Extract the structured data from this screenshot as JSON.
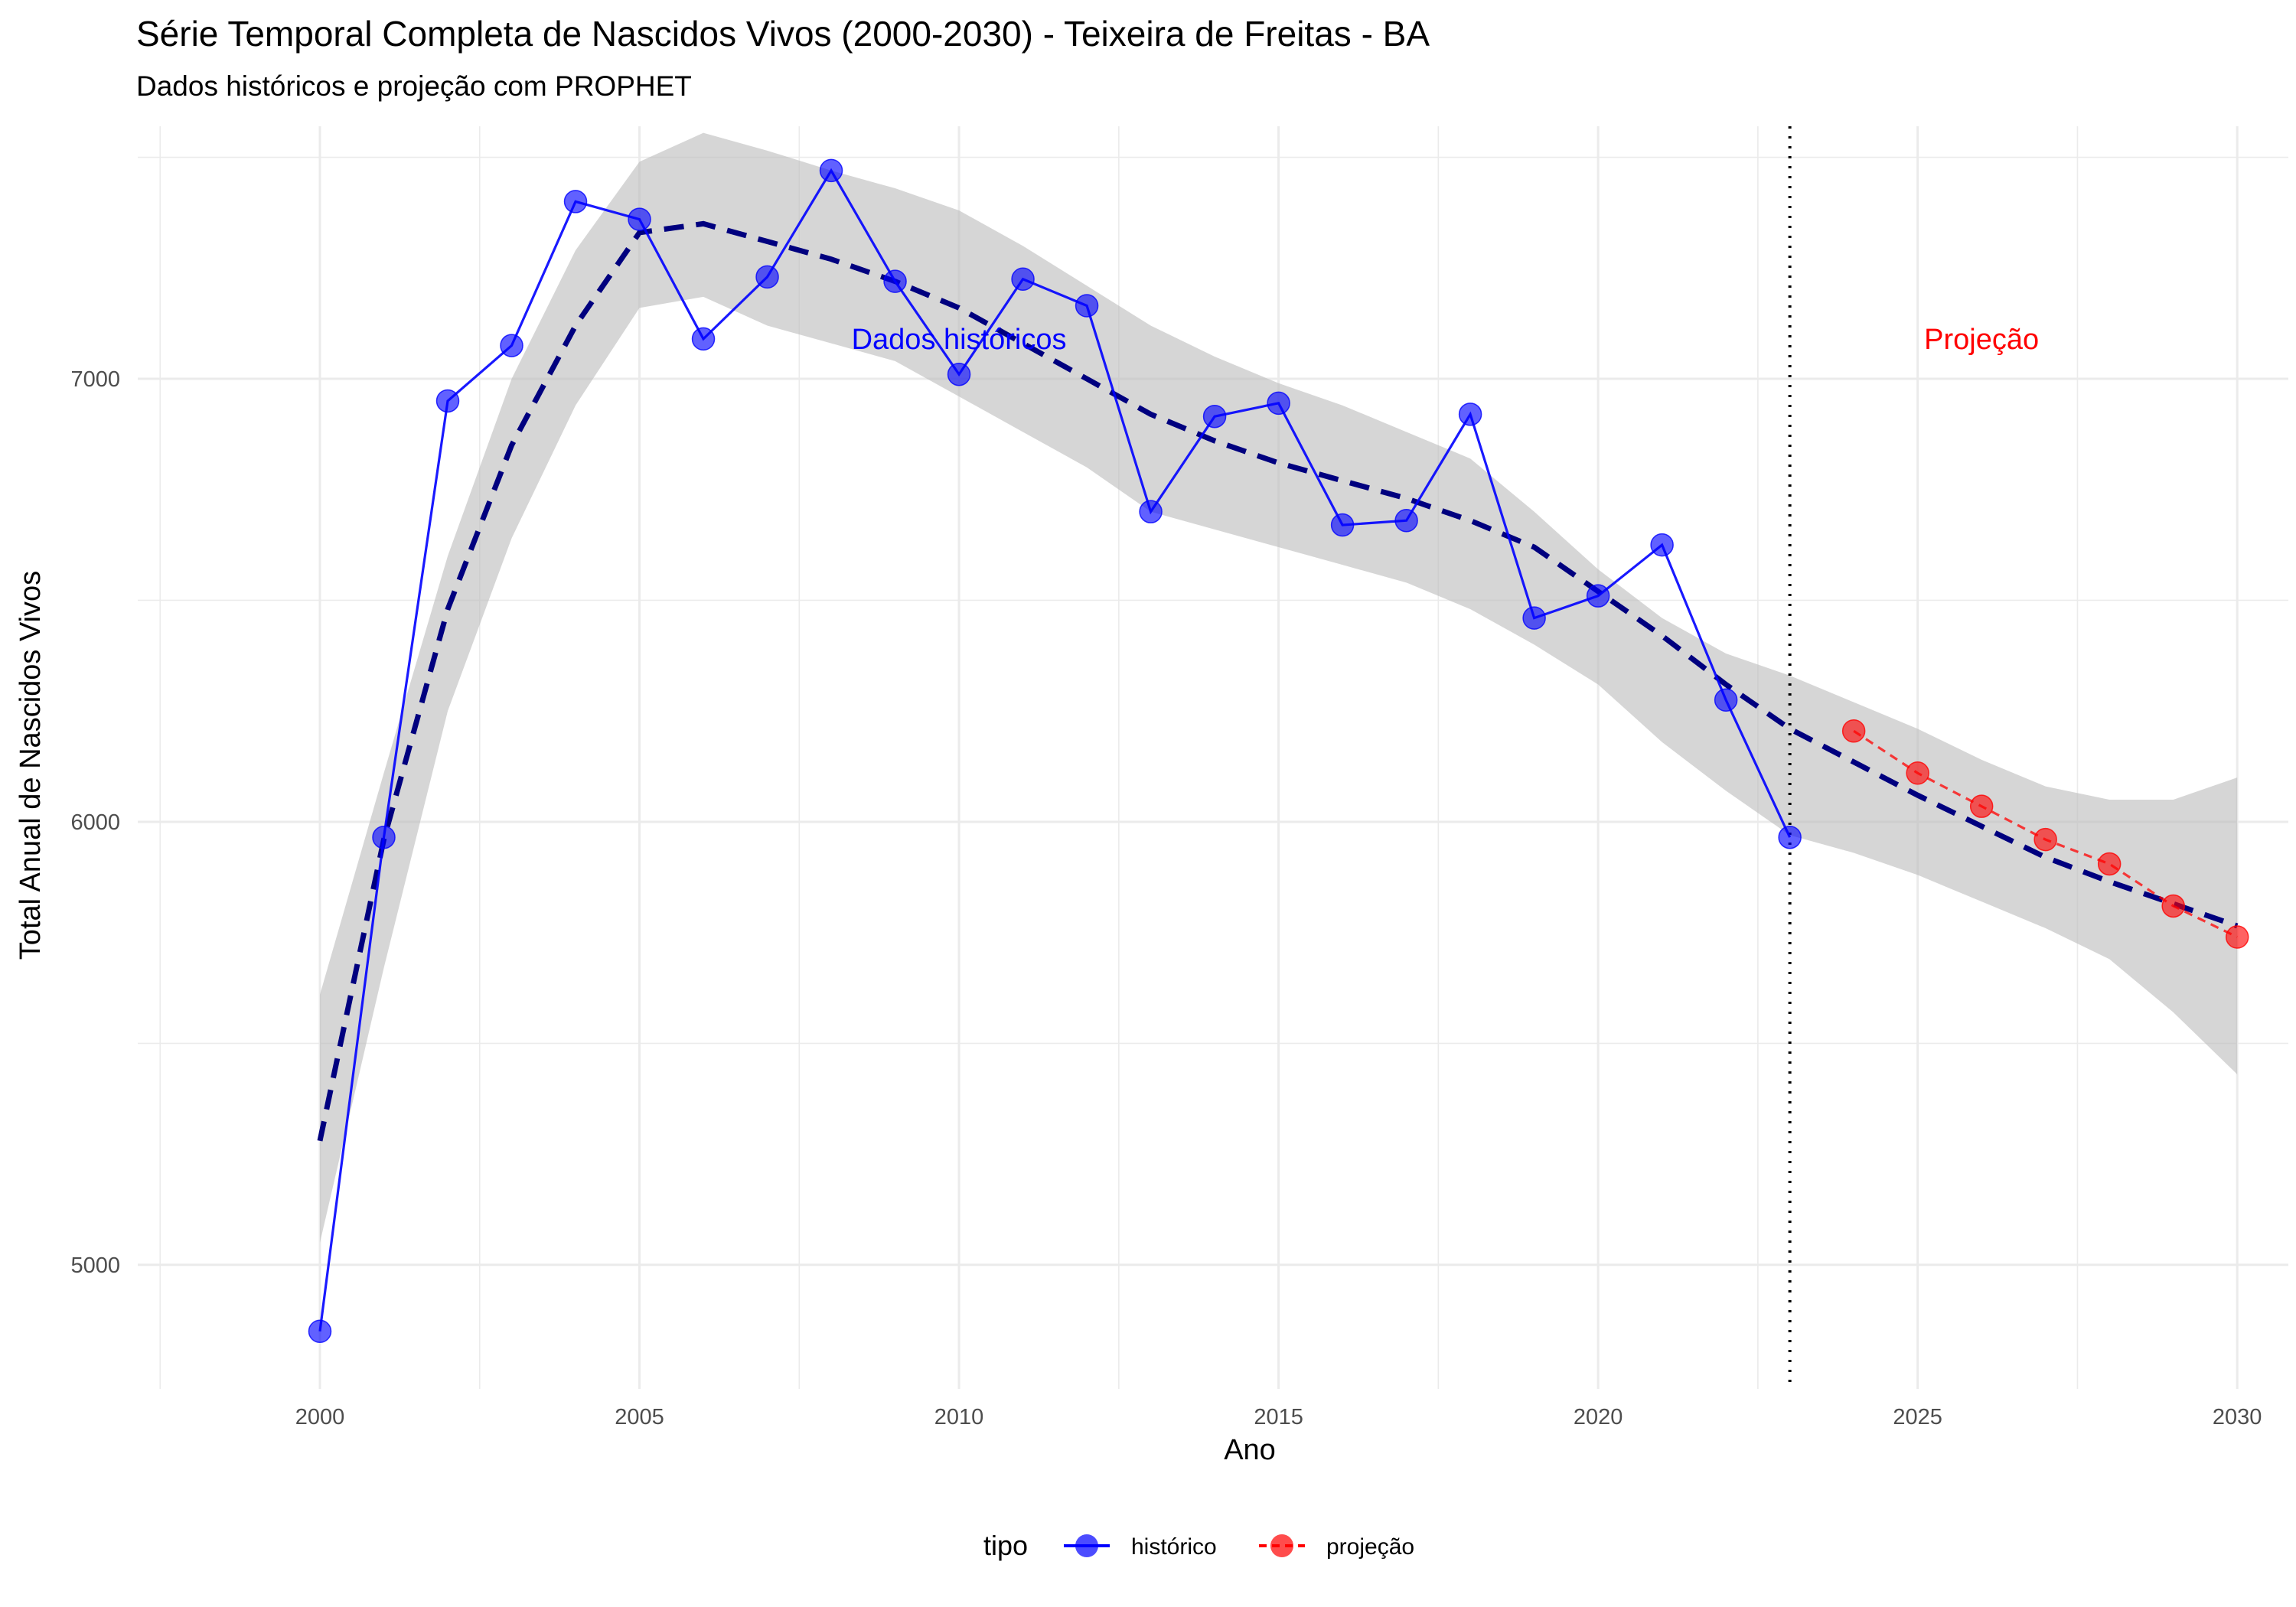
{
  "chart_data": {
    "type": "line",
    "title": "Série Temporal Completa de Nascidos Vivos (2000-2030) -  Teixeira de Freitas - BA",
    "subtitle": "Dados históricos e projeção com PROPHET",
    "xlabel": "Ano",
    "ylabel": "Total Anual de Nascidos Vivos",
    "xlim": [
      1997.15,
      2030.8
    ],
    "ylim": [
      4720,
      7570
    ],
    "x_ticks": [
      2000,
      2005,
      2010,
      2015,
      2020,
      2025,
      2030
    ],
    "x_tick_labels": [
      "2000",
      "2005",
      "2010",
      "2015",
      "2020",
      "2025",
      "2030"
    ],
    "y_ticks": [
      5000,
      6000,
      7000
    ],
    "y_tick_labels": [
      "5000",
      "6000",
      "7000"
    ],
    "grid": true,
    "legend": {
      "title": "tipo",
      "position": "bottom",
      "entries": [
        "histórico",
        "projeção"
      ]
    },
    "colors": {
      "historico": "#0000ff",
      "projecao": "#ff0000",
      "trend": "#00007f",
      "band": "#bdbdbd",
      "grid": "#ebebeb"
    },
    "cutoff_year": 2023,
    "annotations": [
      {
        "text": "Dados históricos",
        "x": 2010,
        "y": 7090,
        "color": "#0000ff"
      },
      {
        "text": "Projeção",
        "x": 2026,
        "y": 7090,
        "color": "#ff0000"
      }
    ],
    "series": [
      {
        "name": "histórico",
        "x": [
          2000,
          2001,
          2002,
          2003,
          2004,
          2005,
          2006,
          2007,
          2008,
          2009,
          2010,
          2011,
          2012,
          2013,
          2014,
          2015,
          2016,
          2017,
          2018,
          2019,
          2020,
          2021,
          2022,
          2023
        ],
        "values": [
          4850,
          5965,
          6950,
          7075,
          7400,
          7360,
          7090,
          7230,
          7470,
          7220,
          7010,
          7225,
          7165,
          6700,
          6915,
          6945,
          6670,
          6680,
          6920,
          6460,
          6510,
          6625,
          6275,
          5965
        ]
      },
      {
        "name": "projeção",
        "x": [
          2024,
          2025,
          2026,
          2027,
          2028,
          2029,
          2030
        ],
        "values": [
          6205,
          6110,
          6035,
          5960,
          5905,
          5810,
          5740
        ]
      }
    ],
    "trend": {
      "x": [
        2000,
        2001,
        2002,
        2003,
        2004,
        2005,
        2006,
        2007,
        2008,
        2009,
        2010,
        2011,
        2012,
        2013,
        2014,
        2015,
        2016,
        2017,
        2018,
        2019,
        2020,
        2021,
        2022,
        2023,
        2024,
        2025,
        2026,
        2027,
        2028,
        2029,
        2030
      ],
      "values": [
        5280,
        5960,
        6480,
        6850,
        7120,
        7330,
        7350,
        7310,
        7270,
        7220,
        7160,
        7080,
        7000,
        6920,
        6860,
        6810,
        6770,
        6730,
        6680,
        6620,
        6520,
        6420,
        6310,
        6210,
        6135,
        6060,
        5990,
        5920,
        5865,
        5815,
        5765
      ],
      "band_upper": [
        5610,
        6110,
        6600,
        7000,
        7290,
        7490,
        7555,
        7515,
        7470,
        7430,
        7380,
        7300,
        7210,
        7120,
        7050,
        6990,
        6940,
        6880,
        6820,
        6700,
        6570,
        6460,
        6380,
        6330,
        6270,
        6210,
        6140,
        6080,
        6050,
        6050,
        6100
      ],
      "band_lower": [
        5050,
        5670,
        6250,
        6640,
        6940,
        7160,
        7185,
        7120,
        7080,
        7040,
        6960,
        6880,
        6800,
        6700,
        6660,
        6620,
        6580,
        6540,
        6480,
        6400,
        6310,
        6180,
        6070,
        5970,
        5930,
        5880,
        5820,
        5760,
        5690,
        5570,
        5430
      ]
    }
  }
}
